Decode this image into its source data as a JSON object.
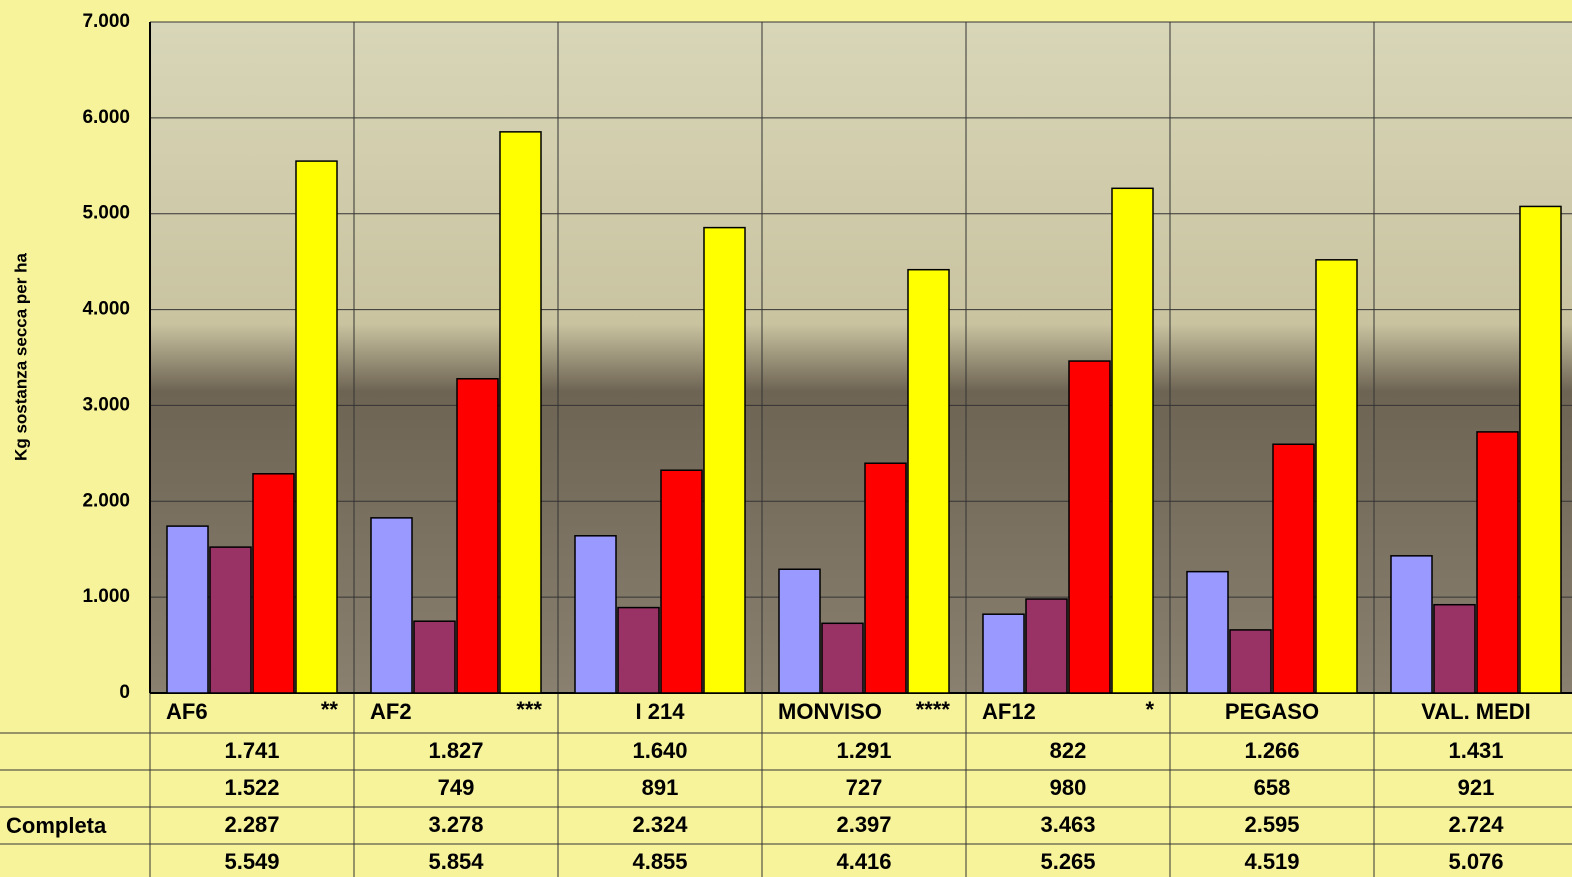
{
  "chart_data": {
    "type": "bar",
    "y_label": "Kg sostanza secca per ha",
    "categories": [
      "AF6",
      "AF2",
      "I 214",
      "MONVISO",
      "AF12",
      "PEGASO",
      "VAL. MEDI"
    ],
    "markers": [
      "**",
      "***",
      null,
      "****",
      "*",
      null,
      null
    ],
    "series": [
      {
        "name": null,
        "color": "#9999ff",
        "values": [
          1741,
          1827,
          1640,
          1291,
          822,
          1266,
          1431
        ],
        "value_labels": [
          "1.741",
          "1.827",
          "1.640",
          "1.291",
          "822",
          "1.266",
          "1.431"
        ]
      },
      {
        "name": null,
        "color": "#993366",
        "values": [
          1522,
          749,
          891,
          727,
          980,
          658,
          921
        ],
        "value_labels": [
          "1.522",
          "749",
          "891",
          "727",
          "980",
          "658",
          "921"
        ]
      },
      {
        "name": "Completa",
        "color": "#ff0000",
        "values": [
          2287,
          3278,
          2324,
          2397,
          3463,
          2595,
          2724
        ],
        "value_labels": [
          "2.287",
          "3.278",
          "2.324",
          "2.397",
          "3.463",
          "2.595",
          "2.724"
        ]
      },
      {
        "name": null,
        "color": "#ffff00",
        "values": [
          5549,
          5854,
          4855,
          4416,
          5265,
          4519,
          5076
        ],
        "value_labels": [
          "5.549",
          "5.854",
          "4.855",
          "4.416",
          "5.265",
          "4.519",
          "5.076"
        ]
      }
    ],
    "ylim": [
      0,
      7000
    ],
    "yticks": [
      0,
      {
        "value": 1000,
        "label": "1.000"
      },
      {
        "value": 2000,
        "label": "2.000"
      },
      {
        "value": 3000,
        "label": "3.000"
      },
      {
        "value": 4000,
        "label": "4.000"
      },
      {
        "value": 5000,
        "label": "5.000"
      },
      {
        "value": 6000,
        "label": "6.000"
      },
      {
        "value": 7000,
        "label": "7.000"
      }
    ],
    "grid": true
  }
}
